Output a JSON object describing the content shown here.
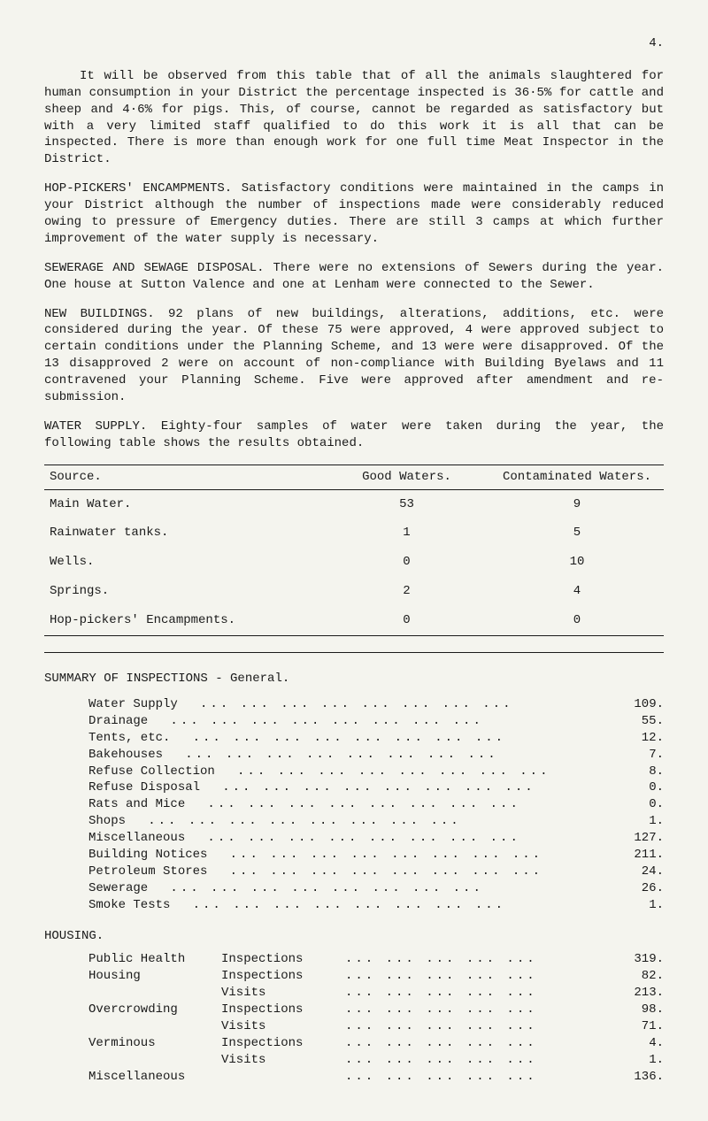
{
  "page_number": "4.",
  "paragraphs": {
    "p1": "It will be observed from this table that of all the animals slaughtered for human consumption in your District the percentage inspected is 36·5% for cattle and sheep and 4·6% for pigs. This, of course, cannot be regarded as satisfactory but with a very limited staff qualified to do this work it is all that can be inspected. There is more than enough work for one full time Meat Inspector in the District.",
    "p2": "HOP-PICKERS' ENCAMPMENTS. Satisfactory conditions were maintained in the camps in your District although the number of inspections made were considerably reduced owing to pressure of Emergency duties. There are still 3 camps at which further improvement of the water supply is necessary.",
    "p3": "SEWERAGE AND SEWAGE DISPOSAL. There were no extensions of Sewers during the year. One house at Sutton Valence and one at Lenham were connected to the Sewer.",
    "p4": "NEW BUILDINGS. 92 plans of new buildings, alterations, additions, etc. were considered during the year. Of these 75 were approved, 4 were approved subject to certain conditions under the Planning Scheme, and 13 were were disapproved. Of the 13 disapproved 2 were on account of non-compliance with Building Byelaws and 11 contravened your Planning Scheme. Five were approved after amendment and re-submission.",
    "p5": "WATER SUPPLY. Eighty-four samples of water were taken during the year, the following table shows the results obtained."
  },
  "water_table": {
    "headers": {
      "source": "Source.",
      "good": "Good Waters.",
      "contam": "Contaminated Waters."
    },
    "rows": [
      {
        "source": "Main Water.",
        "good": "53",
        "contam": "9"
      },
      {
        "source": "Rainwater tanks.",
        "good": "1",
        "contam": "5"
      },
      {
        "source": "Wells.",
        "good": "0",
        "contam": "10"
      },
      {
        "source": "Springs.",
        "good": "2",
        "contam": "4"
      },
      {
        "source": "Hop-pickers' Encampments.",
        "good": "0",
        "contam": "0"
      }
    ]
  },
  "summary": {
    "title": "SUMMARY OF INSPECTIONS - General.",
    "rows": [
      {
        "label": "Water Supply",
        "val": "109."
      },
      {
        "label": "Drainage",
        "val": "55."
      },
      {
        "label": "Tents, etc.",
        "val": "12."
      },
      {
        "label": "Bakehouses",
        "val": "7."
      },
      {
        "label": "Refuse Collection",
        "val": "8."
      },
      {
        "label": "Refuse Disposal",
        "val": "0."
      },
      {
        "label": "Rats and Mice",
        "val": "0."
      },
      {
        "label": "Shops",
        "val": "1."
      },
      {
        "label": "Miscellaneous",
        "val": "127."
      },
      {
        "label": "Building Notices",
        "val": "211."
      },
      {
        "label": "Petroleum Stores",
        "val": "24."
      },
      {
        "label": "Sewerage",
        "val": "26."
      },
      {
        "label": "Smoke Tests",
        "val": "1."
      }
    ]
  },
  "housing": {
    "title": "HOUSING.",
    "rows": [
      {
        "c1": "Public Health",
        "c2": "Inspections",
        "val": "319."
      },
      {
        "c1": "Housing",
        "c2": "Inspections",
        "val": "82."
      },
      {
        "c1": "",
        "c2": "Visits",
        "val": "213."
      },
      {
        "c1": "Overcrowding",
        "c2": "Inspections",
        "val": "98."
      },
      {
        "c1": "",
        "c2": "Visits",
        "val": "71."
      },
      {
        "c1": "Verminous",
        "c2": "Inspections",
        "val": "4."
      },
      {
        "c1": "",
        "c2": "Visits",
        "val": "1."
      },
      {
        "c1": "Miscellaneous",
        "c2": "",
        "val": "136."
      }
    ]
  }
}
